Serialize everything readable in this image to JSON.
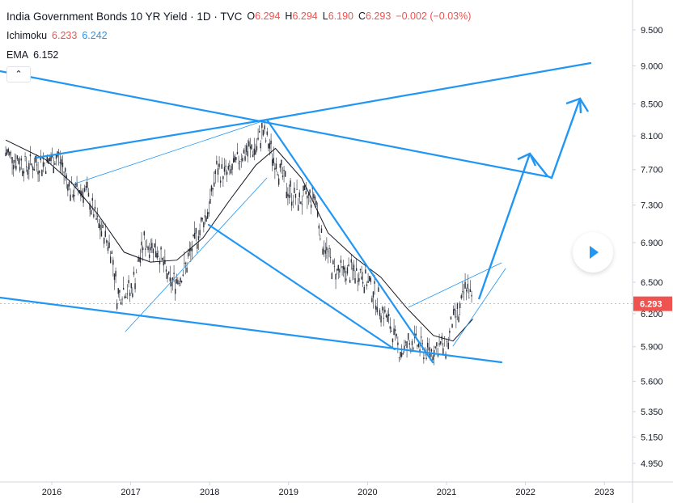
{
  "header": {
    "title": "India Government Bonds 10 YR Yield · 1D · TVC",
    "ohlc": [
      {
        "label": "O",
        "value": "6.294"
      },
      {
        "label": "H",
        "value": "6.294"
      },
      {
        "label": "L",
        "value": "6.190"
      },
      {
        "label": "C",
        "value": "6.293"
      }
    ],
    "change": "−0.002 (−0.03%)"
  },
  "indicators": {
    "ichimoku": {
      "label": "Ichimoku",
      "value_a": "6.233",
      "value_b": "6.242"
    },
    "ema": {
      "label": "EMA",
      "value": "6.152"
    }
  },
  "collapse_glyph": "⌃",
  "last_price": "6.293",
  "colors": {
    "price_badge": "#ef5350",
    "drawing": "#2196f3",
    "ema_line": "#131722",
    "candle": "#2a2e39"
  },
  "chart_data": {
    "type": "line",
    "title": "India Government Bonds 10 YR Yield · 1D · TVC",
    "xlabel": "",
    "ylabel": "",
    "x_ticks": [
      "2016",
      "2017",
      "2018",
      "2019",
      "2020",
      "2021",
      "2022",
      "2023"
    ],
    "y_ticks": [
      "9.500",
      "9.000",
      "8.500",
      "8.100",
      "7.700",
      "7.300",
      "6.900",
      "6.500",
      "6.200",
      "5.900",
      "5.600",
      "5.350",
      "5.150",
      "4.950"
    ],
    "ylim": [
      4.8,
      9.7
    ],
    "y_scale": "log",
    "grid": false,
    "series": [
      {
        "type": "ohlc",
        "x": [
          "2015-06",
          "2015-09",
          "2015-12",
          "2016-02",
          "2016-04",
          "2016-06",
          "2016-08",
          "2016-10",
          "2016-11",
          "2016-12",
          "2017-01",
          "2017-03",
          "2017-05",
          "2017-07",
          "2017-09",
          "2017-11",
          "2018-01",
          "2018-02",
          "2018-04",
          "2018-06",
          "2018-08",
          "2018-09",
          "2018-11",
          "2019-01",
          "2019-03",
          "2019-05",
          "2019-06",
          "2019-08",
          "2019-10",
          "2019-12",
          "2020-02",
          "2020-04",
          "2020-06",
          "2020-08",
          "2020-10",
          "2020-12",
          "2021-01",
          "2021-02",
          "2021-03",
          "2021-04",
          "2021-05"
        ],
        "values": [
          7.9,
          7.75,
          7.78,
          7.85,
          7.45,
          7.48,
          7.1,
          6.85,
          6.35,
          6.45,
          6.4,
          6.9,
          6.85,
          6.48,
          6.6,
          6.95,
          7.3,
          7.7,
          7.65,
          7.9,
          7.95,
          8.15,
          7.8,
          7.45,
          7.35,
          7.4,
          6.95,
          6.6,
          6.6,
          6.6,
          6.4,
          6.15,
          5.85,
          5.95,
          5.85,
          5.9,
          5.9,
          6.15,
          6.2,
          6.5,
          6.29
        ]
      },
      {
        "name": "EMA",
        "x": [
          "2015-06",
          "2015-12",
          "2016-04",
          "2016-08",
          "2016-12",
          "2017-04",
          "2017-08",
          "2017-12",
          "2018-04",
          "2018-08",
          "2018-11",
          "2019-03",
          "2019-07",
          "2019-11",
          "2020-03",
          "2020-07",
          "2020-11",
          "2021-02",
          "2021-05"
        ],
        "values": [
          8.05,
          7.82,
          7.55,
          7.2,
          6.8,
          6.7,
          6.72,
          6.95,
          7.35,
          7.75,
          7.95,
          7.6,
          7.0,
          6.75,
          6.55,
          6.25,
          6.0,
          5.95,
          6.15
        ]
      }
    ]
  }
}
